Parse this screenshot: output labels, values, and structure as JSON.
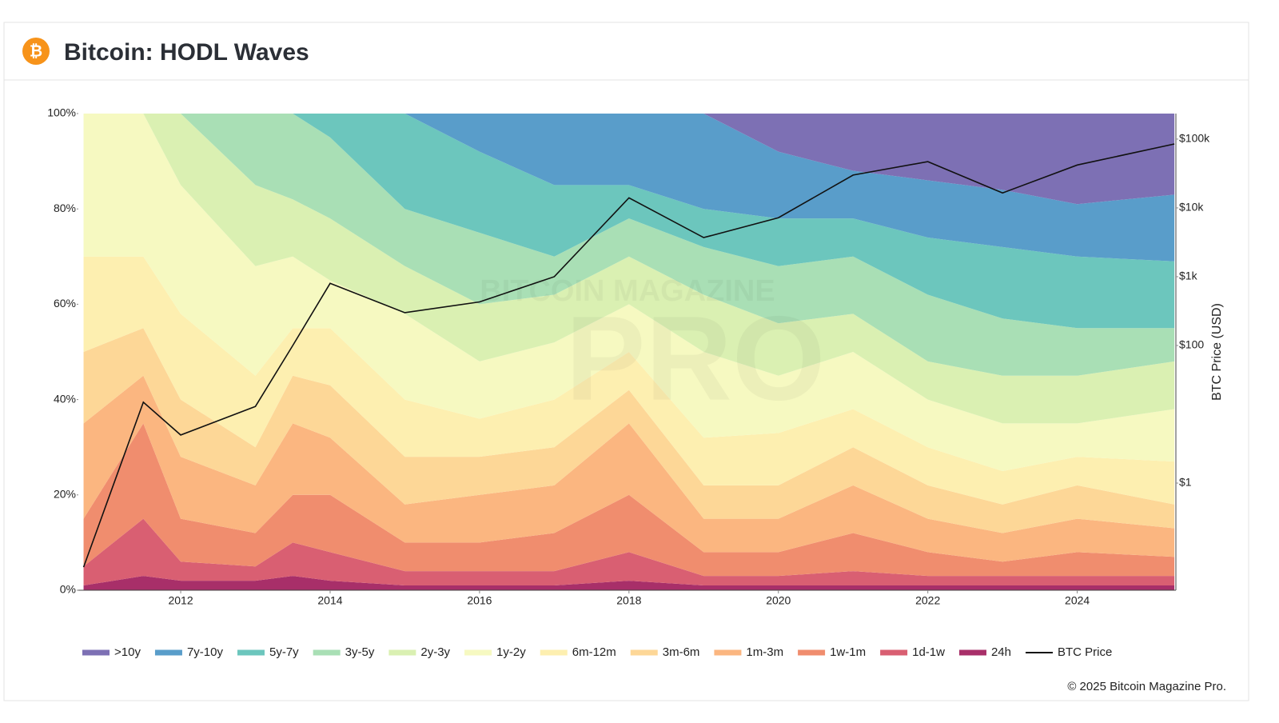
{
  "chart_data": {
    "type": "area",
    "stacked": true,
    "icon": "₿",
    "title": "Bitcoin: HODL Waves",
    "y2label": "BTC Price (USD)",
    "watermark": [
      "BITCOIN MAGAZINE",
      "PRO"
    ],
    "footer": "© 2025 Bitcoin Magazine Pro.",
    "x": [
      2010.7,
      2011.5,
      2012,
      2013,
      2013.5,
      2014,
      2015,
      2016,
      2017,
      2018,
      2019,
      2020,
      2021,
      2022,
      2023,
      2024,
      2025.3
    ],
    "xlim": [
      2010.63,
      2025.32
    ],
    "xticks": [
      2012,
      2014,
      2016,
      2018,
      2020,
      2022,
      2024
    ],
    "ylim": [
      0,
      100
    ],
    "yticks": [
      {
        "value": 0,
        "label": "0%"
      },
      {
        "value": 20,
        "label": "20%"
      },
      {
        "value": 40,
        "label": "40%"
      },
      {
        "value": 60,
        "label": "60%"
      },
      {
        "value": 80,
        "label": "80%"
      },
      {
        "value": 100,
        "label": "100%"
      }
    ],
    "y2lim": [
      0.0277,
      235000
    ],
    "y2scale": "log",
    "y2ticks": [
      {
        "value": 1,
        "label": "$1"
      },
      {
        "value": 100,
        "label": "$100"
      },
      {
        "value": 1000,
        "label": "$1k"
      },
      {
        "value": 10000,
        "label": "$10k"
      },
      {
        "value": 100000,
        "label": "$100k"
      }
    ],
    "grid": false,
    "legend": "bottom",
    "series": [
      {
        "name": ">10y",
        "color": "#7d70b4",
        "values": [
          0,
          0,
          0,
          0,
          0,
          0,
          0,
          0,
          0,
          0,
          0,
          8,
          12,
          14,
          16,
          19,
          17
        ]
      },
      {
        "name": "7y-10y",
        "color": "#599dca",
        "values": [
          0,
          0,
          0,
          0,
          0,
          0,
          0,
          8,
          15,
          15,
          20,
          14,
          10,
          12,
          12,
          11,
          14
        ]
      },
      {
        "name": "5y-7y",
        "color": "#6cc6bd",
        "values": [
          0,
          0,
          0,
          0,
          0,
          5,
          20,
          17,
          15,
          7,
          8,
          10,
          8,
          12,
          15,
          15,
          14
        ]
      },
      {
        "name": "3y-5y",
        "color": "#a9dfb5",
        "values": [
          0,
          0,
          0,
          15,
          18,
          17,
          12,
          15,
          8,
          8,
          10,
          12,
          12,
          14,
          12,
          10,
          7
        ]
      },
      {
        "name": "2y-3y",
        "color": "#daf0b2",
        "values": [
          0,
          0,
          15,
          17,
          12,
          13,
          10,
          12,
          10,
          10,
          12,
          11,
          8,
          8,
          10,
          10,
          10
        ]
      },
      {
        "name": "1y-2y",
        "color": "#f6f9c1",
        "values": [
          30,
          30,
          27,
          23,
          15,
          10,
          18,
          12,
          12,
          10,
          18,
          12,
          12,
          10,
          10,
          7,
          11
        ]
      },
      {
        "name": "6m-12m",
        "color": "#fdefb0",
        "values": [
          20,
          15,
          18,
          15,
          10,
          12,
          12,
          8,
          10,
          8,
          10,
          11,
          8,
          8,
          7,
          6,
          9
        ]
      },
      {
        "name": "3m-6m",
        "color": "#fdd797",
        "values": [
          15,
          10,
          12,
          8,
          10,
          11,
          10,
          8,
          8,
          7,
          7,
          7,
          8,
          7,
          6,
          7,
          5
        ]
      },
      {
        "name": "1m-3m",
        "color": "#fbb680",
        "values": [
          20,
          10,
          13,
          10,
          15,
          12,
          8,
          10,
          10,
          15,
          7,
          7,
          10,
          7,
          6,
          7,
          6
        ]
      },
      {
        "name": "1w-1m",
        "color": "#f08d6e",
        "values": [
          10,
          20,
          9,
          7,
          10,
          12,
          6,
          6,
          8,
          12,
          5,
          5,
          8,
          5,
          3,
          5,
          4
        ]
      },
      {
        "name": "1d-1w",
        "color": "#d95f72",
        "values": [
          4,
          12,
          4,
          3,
          7,
          6,
          3,
          3,
          3,
          6,
          2,
          2,
          3,
          2,
          2,
          2,
          2
        ]
      },
      {
        "name": "24h",
        "color": "#a82f69",
        "values": [
          1,
          3,
          2,
          2,
          3,
          2,
          1,
          1,
          1,
          2,
          1,
          1,
          1,
          1,
          1,
          1,
          1
        ]
      },
      {
        "name": "BTC Price",
        "color": "#111111",
        "type": "line",
        "axis": "y2",
        "values": [
          0.06,
          15,
          5,
          13,
          100,
          800,
          300,
          430,
          1000,
          14000,
          3700,
          7200,
          30000,
          47000,
          16500,
          42000,
          85000
        ]
      }
    ]
  }
}
